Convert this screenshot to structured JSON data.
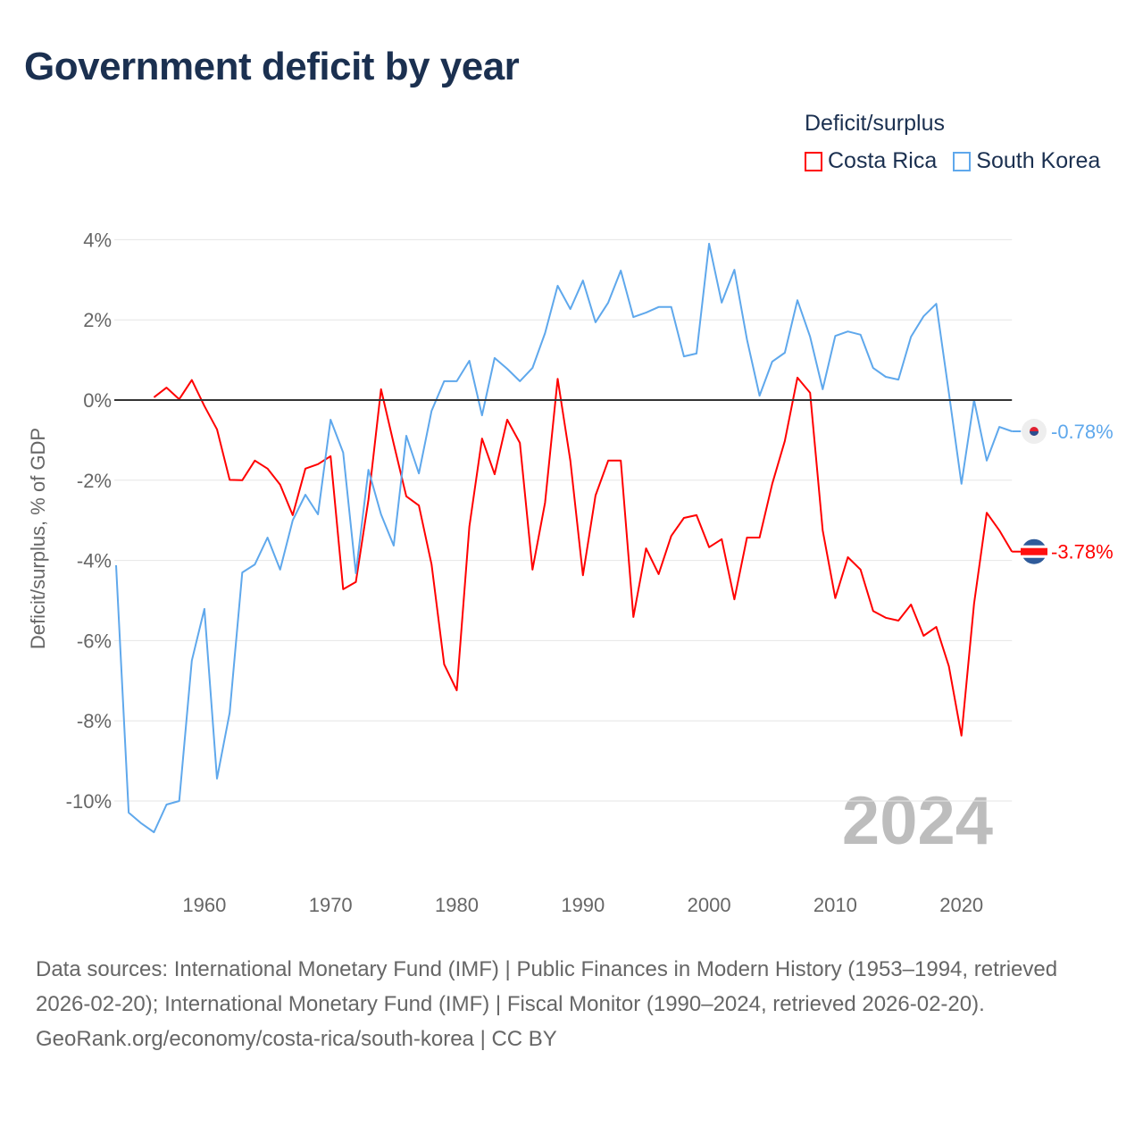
{
  "title": "Government deficit by year",
  "legend": {
    "title": "Deficit/surplus",
    "items": [
      {
        "label": "Costa Rica",
        "color": "#ff0000"
      },
      {
        "label": "South Korea",
        "color": "#5fa8ec"
      }
    ]
  },
  "footer": {
    "sources": "Data sources: International Monetary Fund (IMF) | Public Finances in Modern History (1953–1994, retrieved 2026-02-20); International Monetary Fund (IMF) | Fiscal Monitor (1990–2024, retrieved 2026-02-20).",
    "credit": "GeoRank.org/economy/costa-rica/south-korea | CC BY"
  },
  "chart_data": {
    "type": "line",
    "title": "Government deficit by year",
    "xlabel": "",
    "ylabel": "Deficit/surplus, % of GDP",
    "xlim": [
      1953,
      2024
    ],
    "ylim": [
      -11,
      4.5
    ],
    "x_ticks": [
      1960,
      1970,
      1980,
      1990,
      2000,
      2010,
      2020
    ],
    "x_tick_labels": [
      "1960",
      "1970",
      "1980",
      "1990",
      "2000",
      "2010",
      "2020"
    ],
    "y_ticks": [
      4,
      2,
      0,
      -2,
      -4,
      -6,
      -8,
      -10
    ],
    "y_tick_labels": [
      "4%",
      "2%",
      "0%",
      "-2%",
      "-4%",
      "-6%",
      "-8%",
      "-10%"
    ],
    "grid": true,
    "legend_position": "top-right",
    "year_watermark": "2024",
    "series": [
      {
        "name": "Costa Rica",
        "color": "#ff0000",
        "end_label": "-3.78%",
        "start_year": 1956,
        "values": [
          0.07,
          0.31,
          0.02,
          0.5,
          -0.15,
          -0.73,
          -1.99,
          -2.0,
          -1.51,
          -1.71,
          -2.11,
          -2.87,
          -1.71,
          -1.6,
          -1.4,
          -4.72,
          -4.54,
          -2.49,
          0.27,
          -1.09,
          -2.4,
          -2.63,
          -4.1,
          -6.59,
          -7.24,
          -3.16,
          -0.96,
          -1.85,
          -0.49,
          -1.07,
          -4.23,
          -2.56,
          0.53,
          -1.51,
          -4.37,
          -2.38,
          -1.51,
          -1.51,
          -5.41,
          -3.7,
          -4.34,
          -3.39,
          -2.94,
          -2.87,
          -3.67,
          -3.47,
          -4.97,
          -3.43,
          -3.43,
          -2.09,
          -1.02,
          0.56,
          0.18,
          -3.25,
          -4.94,
          -3.92,
          -4.23,
          -5.26,
          -5.43,
          -5.5,
          -5.1,
          -5.88,
          -5.66,
          -6.64,
          -8.37,
          -5.08,
          -2.81,
          -3.25,
          -3.78
        ]
      },
      {
        "name": "South Korea",
        "color": "#5fa8ec",
        "end_label": "-0.78%",
        "start_year": 1953,
        "values": [
          -4.12,
          -10.29,
          -10.56,
          -10.78,
          -10.09,
          -10.0,
          -6.5,
          -5.21,
          -9.44,
          -7.8,
          -4.3,
          -4.1,
          -3.43,
          -4.23,
          -3.0,
          -2.36,
          -2.85,
          -0.49,
          -1.31,
          -4.32,
          -1.74,
          -2.85,
          -3.63,
          -0.89,
          -1.83,
          -0.27,
          0.47,
          0.47,
          0.98,
          -0.38,
          1.05,
          0.78,
          0.47,
          0.8,
          1.67,
          2.85,
          2.27,
          2.98,
          1.94,
          2.43,
          3.23,
          2.07,
          2.18,
          2.32,
          2.32,
          1.09,
          1.16,
          3.9,
          2.43,
          3.25,
          1.51,
          0.11,
          0.96,
          1.18,
          2.49,
          1.58,
          0.27,
          1.6,
          1.71,
          1.63,
          0.8,
          0.58,
          0.51,
          1.58,
          2.09,
          2.4,
          0.18,
          -2.09,
          0.0,
          -1.51,
          -0.67,
          -0.78
        ]
      }
    ]
  }
}
